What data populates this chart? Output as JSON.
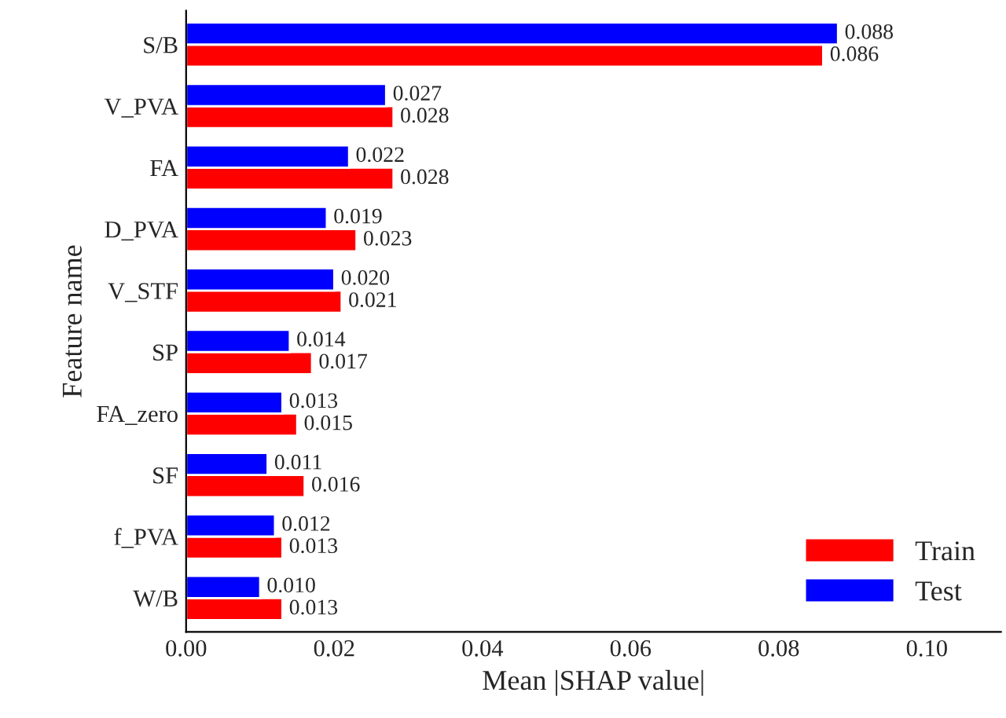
{
  "chart_data": {
    "type": "bar",
    "orientation": "horizontal",
    "xlabel": "Mean |SHAP value|",
    "ylabel": "Feature name",
    "categories": [
      "S/B",
      "V_PVA",
      "FA",
      "D_PVA",
      "V_STF",
      "SP",
      "FA_zero",
      "SF",
      "f_PVA",
      "W/B"
    ],
    "series": [
      {
        "name": "Train",
        "color": "#ff0000",
        "values": [
          0.086,
          0.028,
          0.028,
          0.023,
          0.021,
          0.017,
          0.015,
          0.016,
          0.013,
          0.013
        ],
        "value_labels": [
          "0.086",
          "0.028",
          "0.028",
          "0.023",
          "0.021",
          "0.017",
          "0.015",
          "0.016",
          "0.013",
          "0.013"
        ]
      },
      {
        "name": "Test",
        "color": "#0000ff",
        "values": [
          0.088,
          0.027,
          0.022,
          0.019,
          0.02,
          0.014,
          0.013,
          0.011,
          0.012,
          0.01
        ],
        "value_labels": [
          "0.088",
          "0.027",
          "0.022",
          "0.019",
          "0.020",
          "0.014",
          "0.013",
          "0.011",
          "0.012",
          "0.010"
        ]
      }
    ],
    "xlim": [
      0,
      0.11
    ],
    "xticks": [
      {
        "value": 0,
        "label": "0.00"
      },
      {
        "value": 0.02,
        "label": "0.02"
      },
      {
        "value": 0.04,
        "label": "0.04"
      },
      {
        "value": 0.06,
        "label": "0.06"
      },
      {
        "value": 0.08,
        "label": "0.08"
      },
      {
        "value": 0.1,
        "label": "0.10"
      }
    ],
    "legend": "bottom right",
    "grid": false
  }
}
